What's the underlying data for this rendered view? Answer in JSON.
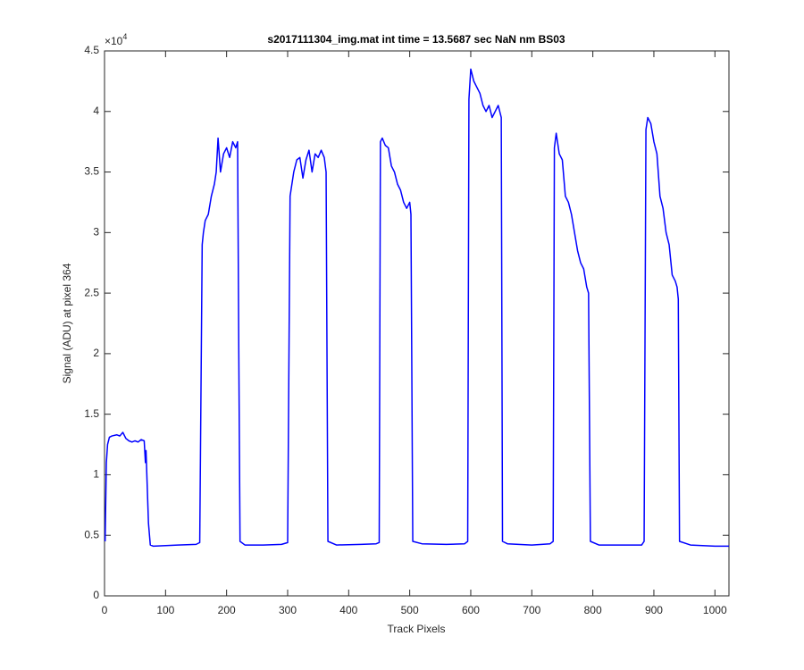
{
  "chart_data": {
    "type": "line",
    "title": "s2017111304_img.mat int time = 13.5687 sec  NaN nm BS03",
    "x_label": "Track Pixels",
    "y_label": "Signal (ADU) at pixel 364",
    "y_multiplier_base": "×10",
    "y_multiplier_exponent": "4",
    "xlim": [
      0,
      1023
    ],
    "ylim": [
      0,
      4.5
    ],
    "xticks": [
      0,
      100,
      200,
      300,
      400,
      500,
      600,
      700,
      800,
      900,
      1000
    ],
    "yticks": [
      0,
      0.5,
      1,
      1.5,
      2,
      2.5,
      3,
      3.5,
      4,
      4.5
    ],
    "grid": false,
    "series": [
      {
        "color": "#0000ff",
        "x": [
          1,
          3,
          5,
          8,
          12,
          20,
          25,
          30,
          35,
          40,
          45,
          50,
          55,
          60,
          65,
          67,
          68,
          70,
          72,
          75,
          80,
          100,
          120,
          150,
          156,
          160,
          162,
          165,
          170,
          175,
          180,
          183,
          186,
          190,
          195,
          200,
          205,
          210,
          215,
          218,
          220,
          222,
          230,
          260,
          290,
          300,
          304,
          310,
          315,
          320,
          325,
          330,
          335,
          340,
          345,
          350,
          355,
          360,
          363,
          366,
          380,
          420,
          445,
          450,
          452,
          455,
          460,
          465,
          470,
          475,
          480,
          485,
          490,
          495,
          500,
          502,
          505,
          520,
          560,
          590,
          595,
          597,
          600,
          605,
          610,
          615,
          620,
          625,
          630,
          635,
          640,
          645,
          650,
          652,
          660,
          700,
          730,
          735,
          737,
          740,
          745,
          750,
          755,
          760,
          765,
          770,
          775,
          780,
          785,
          790,
          793,
          796,
          810,
          850,
          880,
          884,
          887,
          890,
          895,
          900,
          905,
          910,
          915,
          920,
          925,
          930,
          935,
          938,
          940,
          942,
          960,
          1000,
          1023
        ],
        "values": [
          0.45,
          1.1,
          1.25,
          1.31,
          1.32,
          1.33,
          1.32,
          1.35,
          1.3,
          1.28,
          1.27,
          1.28,
          1.27,
          1.29,
          1.28,
          1.1,
          1.2,
          0.9,
          0.6,
          0.42,
          0.41,
          0.415,
          0.42,
          0.425,
          0.44,
          2.9,
          3.0,
          3.1,
          3.15,
          3.3,
          3.4,
          3.5,
          3.78,
          3.5,
          3.65,
          3.7,
          3.62,
          3.75,
          3.7,
          3.75,
          2.0,
          0.45,
          0.42,
          0.42,
          0.425,
          0.44,
          3.3,
          3.5,
          3.6,
          3.62,
          3.45,
          3.6,
          3.68,
          3.5,
          3.65,
          3.62,
          3.68,
          3.62,
          3.5,
          0.45,
          0.42,
          0.425,
          0.43,
          0.44,
          3.75,
          3.78,
          3.72,
          3.7,
          3.55,
          3.5,
          3.4,
          3.35,
          3.25,
          3.2,
          3.25,
          3.15,
          0.45,
          0.43,
          0.425,
          0.43,
          0.45,
          4.1,
          4.35,
          4.25,
          4.2,
          4.15,
          4.05,
          4.0,
          4.05,
          3.95,
          4.0,
          4.05,
          3.95,
          0.45,
          0.43,
          0.42,
          0.43,
          0.45,
          3.7,
          3.82,
          3.65,
          3.6,
          3.3,
          3.25,
          3.15,
          3.0,
          2.85,
          2.75,
          2.7,
          2.55,
          2.5,
          0.45,
          0.42,
          0.42,
          0.42,
          0.45,
          3.85,
          3.95,
          3.9,
          3.75,
          3.65,
          3.3,
          3.2,
          3.0,
          2.9,
          2.65,
          2.6,
          2.55,
          2.45,
          0.45,
          0.42,
          0.41,
          0.41
        ]
      }
    ]
  }
}
